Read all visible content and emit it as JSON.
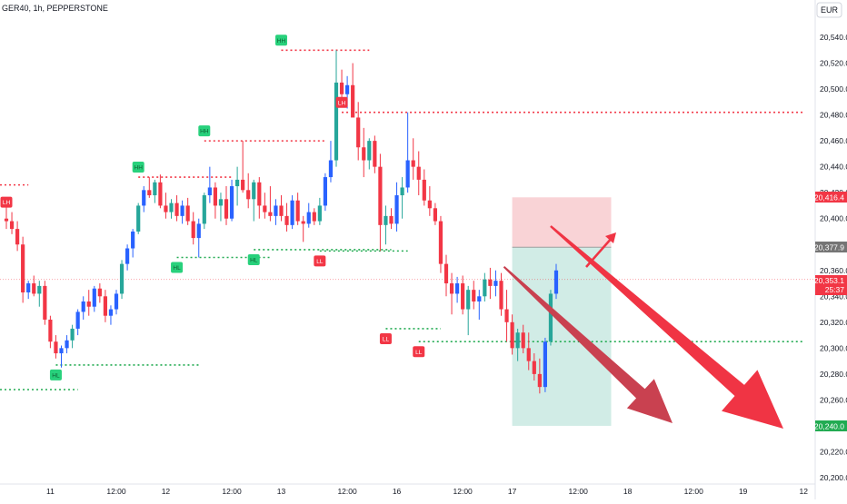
{
  "header": {
    "title": "GER40, 1h, PEPPERSTONE",
    "currency": "EUR"
  },
  "colors": {
    "up": "#2962ff",
    "up_alt": "#26a69a",
    "down": "#f23645",
    "swing_high": "#f23645",
    "swing_low": "#22ab52",
    "arrow": "#c62f3b",
    "profit_zone": "#d1ece6",
    "loss_zone": "#f9d3d6",
    "badge_dark": "#757575"
  },
  "price_badges": {
    "stop": "20,416.4",
    "entry": "20,377.9",
    "last_price": "20,353.1",
    "countdown": "25:37",
    "target": "20,240.0"
  },
  "chart_data": {
    "type": "candlestick",
    "symbol": "GER40",
    "interval": "1h",
    "ylim": [
      20200,
      20550
    ],
    "y_ticks": [
      20200,
      20220,
      20240,
      20260,
      20280,
      20300,
      20320,
      20340,
      20360,
      20380,
      20400,
      20420,
      20440,
      20460,
      20480,
      20500,
      20520,
      20540
    ],
    "y_tick_labels": [
      "20,200.0",
      "20,220.0",
      "20,240.0",
      "20,260.0",
      "20,280.0",
      "20,300.0",
      "20,320.0",
      "20,340.0",
      "20,360.0",
      "20,380.0",
      "20,400.0",
      "20,420.0",
      "20,440.0",
      "20,460.0",
      "20,480.0",
      "20,500.0",
      "20,520.0",
      "20,540.0"
    ],
    "x_ticks": [
      {
        "bar": 8,
        "label": "11"
      },
      {
        "bar": 20,
        "label": "12:00"
      },
      {
        "bar": 29,
        "label": "12"
      },
      {
        "bar": 41,
        "label": "12:00"
      },
      {
        "bar": 50,
        "label": "13"
      },
      {
        "bar": 62,
        "label": "12:00"
      },
      {
        "bar": 71,
        "label": "16"
      },
      {
        "bar": 83,
        "label": "12:00"
      },
      {
        "bar": 92,
        "label": "17"
      },
      {
        "bar": 104,
        "label": "12:00"
      },
      {
        "bar": 113,
        "label": "18"
      },
      {
        "bar": 125,
        "label": "12:00"
      },
      {
        "bar": 134,
        "label": "19"
      },
      {
        "bar": 145,
        "label": "12"
      }
    ],
    "candles": [
      [
        20400,
        20413,
        20392,
        20398
      ],
      [
        20398,
        20405,
        20388,
        20392
      ],
      [
        20392,
        20398,
        20375,
        20380
      ],
      [
        20380,
        20386,
        20335,
        20343
      ],
      [
        20343,
        20352,
        20338,
        20350
      ],
      [
        20350,
        20356,
        20340,
        20342
      ],
      [
        20342,
        20352,
        20332,
        20348
      ],
      [
        20348,
        20352,
        20318,
        20322
      ],
      [
        20322,
        20325,
        20300,
        20305
      ],
      [
        20305,
        20310,
        20292,
        20296
      ],
      [
        20296,
        20302,
        20285,
        20300
      ],
      [
        20300,
        20310,
        20296,
        20306
      ],
      [
        20306,
        20318,
        20300,
        20315
      ],
      [
        20315,
        20330,
        20310,
        20328
      ],
      [
        20328,
        20340,
        20322,
        20336
      ],
      [
        20336,
        20345,
        20325,
        20332
      ],
      [
        20332,
        20348,
        20328,
        20346
      ],
      [
        20346,
        20350,
        20335,
        20340
      ],
      [
        20340,
        20345,
        20320,
        20325
      ],
      [
        20325,
        20333,
        20318,
        20330
      ],
      [
        20330,
        20345,
        20326,
        20342
      ],
      [
        20342,
        20368,
        20338,
        20365
      ],
      [
        20365,
        20380,
        20360,
        20377
      ],
      [
        20377,
        20392,
        20370,
        20390
      ],
      [
        20390,
        20412,
        20388,
        20410
      ],
      [
        20410,
        20425,
        20405,
        20422
      ],
      [
        20422,
        20432,
        20416,
        20418
      ],
      [
        20418,
        20430,
        20412,
        20428
      ],
      [
        20428,
        20434,
        20408,
        20410
      ],
      [
        20410,
        20420,
        20400,
        20405
      ],
      [
        20405,
        20415,
        20400,
        20412
      ],
      [
        20412,
        20418,
        20398,
        20402
      ],
      [
        20402,
        20414,
        20396,
        20410
      ],
      [
        20410,
        20416,
        20395,
        20398
      ],
      [
        20398,
        20405,
        20380,
        20385
      ],
      [
        20385,
        20400,
        20370,
        20396
      ],
      [
        20396,
        20420,
        20392,
        20418
      ],
      [
        20418,
        20440,
        20412,
        20424
      ],
      [
        20424,
        20428,
        20400,
        20410
      ],
      [
        20410,
        20420,
        20398,
        20415
      ],
      [
        20415,
        20425,
        20395,
        20400
      ],
      [
        20400,
        20430,
        20398,
        20425
      ],
      [
        20425,
        20440,
        20410,
        20430
      ],
      [
        20430,
        20460,
        20420,
        20422
      ],
      [
        20422,
        20435,
        20408,
        20415
      ],
      [
        20415,
        20430,
        20398,
        20428
      ],
      [
        20428,
        20432,
        20400,
        20410
      ],
      [
        20410,
        20420,
        20400,
        20405
      ],
      [
        20405,
        20425,
        20398,
        20402
      ],
      [
        20402,
        20415,
        20395,
        20410
      ],
      [
        20410,
        20418,
        20398,
        20402
      ],
      [
        20402,
        20412,
        20390,
        20395
      ],
      [
        20395,
        20418,
        20392,
        20414
      ],
      [
        20414,
        20420,
        20395,
        20398
      ],
      [
        20398,
        20402,
        20382,
        20396
      ],
      [
        20396,
        20412,
        20393,
        20405
      ],
      [
        20405,
        20408,
        20395,
        20398
      ],
      [
        20398,
        20416,
        20395,
        20410
      ],
      [
        20410,
        20435,
        20406,
        20432
      ],
      [
        20432,
        20460,
        20428,
        20445
      ],
      [
        20445,
        20530,
        20440,
        20505
      ],
      [
        20505,
        20515,
        20490,
        20496
      ],
      [
        20496,
        20510,
        20485,
        20503
      ],
      [
        20503,
        20520,
        20480,
        20478
      ],
      [
        20478,
        20490,
        20445,
        20455
      ],
      [
        20455,
        20470,
        20432,
        20445
      ],
      [
        20445,
        20462,
        20438,
        20460
      ],
      [
        20460,
        20464,
        20435,
        20440
      ],
      [
        20440,
        20450,
        20375,
        20395
      ],
      [
        20395,
        20410,
        20380,
        20402
      ],
      [
        20402,
        20408,
        20392,
        20396
      ],
      [
        20396,
        20428,
        20390,
        20418
      ],
      [
        20418,
        20432,
        20400,
        20424
      ],
      [
        20424,
        20482,
        20420,
        20445
      ],
      [
        20445,
        20462,
        20430,
        20440
      ],
      [
        20440,
        20452,
        20418,
        20430
      ],
      [
        20430,
        20438,
        20410,
        20414
      ],
      [
        20414,
        20425,
        20402,
        20408
      ],
      [
        20408,
        20412,
        20395,
        20398
      ],
      [
        20398,
        20402,
        20358,
        20365
      ],
      [
        20365,
        20372,
        20340,
        20350
      ],
      [
        20350,
        20358,
        20326,
        20342
      ],
      [
        20342,
        20355,
        20335,
        20350
      ],
      [
        20350,
        20356,
        20326,
        20330
      ],
      [
        20330,
        20348,
        20310,
        20345
      ],
      [
        20345,
        20352,
        20330,
        20336
      ],
      [
        20336,
        20345,
        20322,
        20340
      ],
      [
        20340,
        20358,
        20336,
        20353
      ],
      [
        20353,
        20362,
        20338,
        20348
      ],
      [
        20348,
        20360,
        20340,
        20352
      ],
      [
        20352,
        20358,
        20325,
        20330
      ],
      [
        20330,
        20345,
        20305,
        20320
      ],
      [
        20320,
        20326,
        20295,
        20300
      ],
      [
        20300,
        20315,
        20290,
        20312
      ],
      [
        20312,
        20318,
        20296,
        20300
      ],
      [
        20300,
        20312,
        20283,
        20290
      ],
      [
        20290,
        20296,
        20275,
        20280
      ],
      [
        20280,
        20292,
        20265,
        20270
      ],
      [
        20270,
        20308,
        20266,
        20305
      ],
      [
        20305,
        20345,
        20302,
        20342
      ],
      [
        20342,
        20365,
        20338,
        20360
      ]
    ],
    "swing_labels": [
      {
        "label": "LH",
        "bar": 0,
        "price": 20405,
        "kind": "high",
        "line_to": null
      },
      {
        "label": "HL",
        "bar": 9,
        "price": 20287,
        "kind": "low",
        "line_to": 35
      },
      {
        "label": "HH",
        "bar": 24,
        "price": 20432,
        "kind": "high",
        "line_to": 41
      },
      {
        "label": "HL",
        "bar": 31,
        "price": 20370,
        "kind": "low",
        "line_to": 48
      },
      {
        "label": "HH",
        "bar": 36,
        "price": 20460,
        "kind": "high",
        "line_to": 58
      },
      {
        "label": "HL",
        "bar": 45,
        "price": 20376,
        "kind": "low",
        "line_to": 70
      },
      {
        "label": "HH",
        "bar": 50,
        "price": 20530,
        "kind": "high",
        "line_to": 66
      },
      {
        "label": "LH",
        "bar": 61,
        "price": 20482,
        "kind": "high",
        "line_to": 145
      },
      {
        "label": "LL",
        "bar": 57,
        "price": 20375,
        "kind": "low",
        "line_to": 73
      },
      {
        "label": "LL",
        "bar": 69,
        "price": 20315,
        "kind": "low",
        "line_to": 79
      },
      {
        "label": "LL",
        "bar": 75,
        "price": 20305,
        "kind": "low",
        "line_to": 145
      }
    ],
    "extra_levels": [
      {
        "price": 20426,
        "from": -2,
        "to": 4,
        "kind": "high"
      },
      {
        "price": 20268,
        "from": -2,
        "to": 13,
        "kind": "low"
      }
    ],
    "position": {
      "type": "short",
      "entry": 20377.9,
      "stop": 20416.4,
      "target": 20240.0,
      "from_bar": 92,
      "to_bar": 110
    },
    "arrows": [
      {
        "from": [
          90,
          20360
        ],
        "to": [
          103,
          20242
        ],
        "style": "fat"
      },
      {
        "from": [
          98,
          20397
        ],
        "to": [
          120,
          20242
        ],
        "style": "fat"
      },
      {
        "from": [
          90,
          20360
        ],
        "to": [
          95,
          20396
        ],
        "style": "thin"
      }
    ]
  }
}
